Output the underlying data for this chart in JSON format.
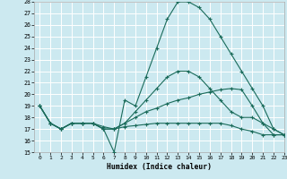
{
  "title": "",
  "xlabel": "Humidex (Indice chaleur)",
  "xlim": [
    -0.5,
    23
  ],
  "ylim": [
    15,
    28
  ],
  "yticks": [
    15,
    16,
    17,
    18,
    19,
    20,
    21,
    22,
    23,
    24,
    25,
    26,
    27,
    28
  ],
  "xticks": [
    0,
    1,
    2,
    3,
    4,
    5,
    6,
    7,
    8,
    9,
    10,
    11,
    12,
    13,
    14,
    15,
    16,
    17,
    18,
    19,
    20,
    21,
    22,
    23
  ],
  "bg_color": "#cce9f0",
  "line_color": "#1a6b5a",
  "grid_color": "#ffffff",
  "lines": [
    {
      "x": [
        0,
        1,
        2,
        3,
        4,
        5,
        6,
        7,
        8,
        9,
        10,
        11,
        12,
        13,
        14,
        15,
        16,
        17,
        18,
        19,
        20,
        21,
        22,
        23
      ],
      "y": [
        19.0,
        17.5,
        17.0,
        17.5,
        17.5,
        17.5,
        17.0,
        15.0,
        19.5,
        19.0,
        21.5,
        24.0,
        26.5,
        28.0,
        28.0,
        27.5,
        26.5,
        25.0,
        23.5,
        22.0,
        20.5,
        19.0,
        17.0,
        16.5
      ]
    },
    {
      "x": [
        0,
        1,
        2,
        3,
        4,
        5,
        6,
        7,
        8,
        9,
        10,
        11,
        12,
        13,
        14,
        15,
        16,
        17,
        18,
        19,
        20,
        21,
        22,
        23
      ],
      "y": [
        19.0,
        17.5,
        17.0,
        17.5,
        17.5,
        17.5,
        17.2,
        17.0,
        17.5,
        18.5,
        19.5,
        20.5,
        21.5,
        22.0,
        22.0,
        21.5,
        20.5,
        19.5,
        18.5,
        18.0,
        18.0,
        17.5,
        17.0,
        16.5
      ]
    },
    {
      "x": [
        0,
        1,
        2,
        3,
        4,
        5,
        6,
        7,
        8,
        9,
        10,
        11,
        12,
        13,
        14,
        15,
        16,
        17,
        18,
        19,
        20,
        21,
        22,
        23
      ],
      "y": [
        19.0,
        17.5,
        17.0,
        17.5,
        17.5,
        17.5,
        17.0,
        17.0,
        17.5,
        18.0,
        18.5,
        18.8,
        19.2,
        19.5,
        19.7,
        20.0,
        20.2,
        20.4,
        20.5,
        20.4,
        19.0,
        17.5,
        16.5,
        16.5
      ]
    },
    {
      "x": [
        0,
        1,
        2,
        3,
        4,
        5,
        6,
        7,
        8,
        9,
        10,
        11,
        12,
        13,
        14,
        15,
        16,
        17,
        18,
        19,
        20,
        21,
        22,
        23
      ],
      "y": [
        19.0,
        17.5,
        17.0,
        17.5,
        17.5,
        17.5,
        17.0,
        17.0,
        17.2,
        17.3,
        17.4,
        17.5,
        17.5,
        17.5,
        17.5,
        17.5,
        17.5,
        17.5,
        17.3,
        17.0,
        16.8,
        16.5,
        16.5,
        16.5
      ]
    }
  ]
}
